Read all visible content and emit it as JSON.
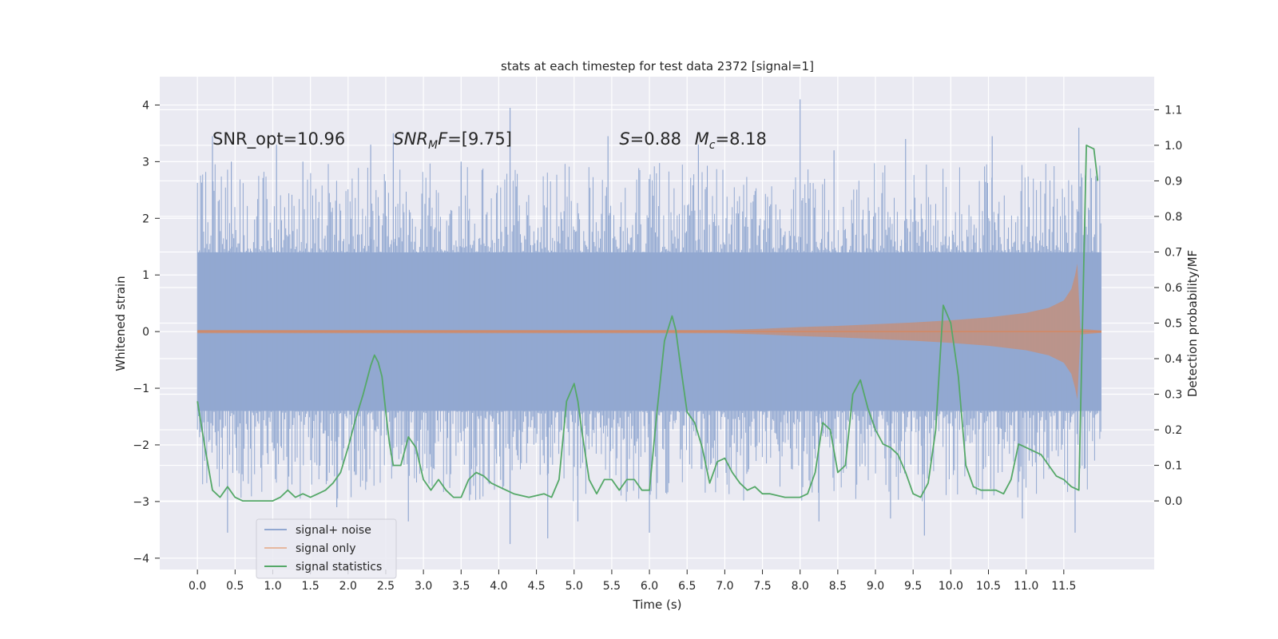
{
  "chart_data": {
    "type": "line",
    "title": "stats at each timestep for test data 2372 [signal=1]",
    "xlabel": "Time (s)",
    "ylabel_left": "Whitened strain",
    "ylabel_right": "Detection probability/MF",
    "xlim": [
      -0.5,
      12.7
    ],
    "ylim_left": [
      -4.2,
      4.5
    ],
    "ylim_right": [
      -0.193,
      1.193
    ],
    "x_ticks": [
      0.0,
      0.5,
      1.0,
      1.5,
      2.0,
      2.5,
      3.0,
      3.5,
      4.0,
      4.5,
      5.0,
      5.5,
      6.0,
      6.5,
      7.0,
      7.5,
      8.0,
      8.5,
      9.0,
      9.5,
      10.0,
      10.5,
      11.0,
      11.5
    ],
    "x_tick_labels": [
      "0.0",
      "0.5",
      "1.0",
      "1.5",
      "2.0",
      "2.5",
      "3.0",
      "3.5",
      "4.0",
      "4.5",
      "5.0",
      "5.5",
      "6.0",
      "6.5",
      "7.0",
      "7.5",
      "8.0",
      "8.5",
      "9.0",
      "9.5",
      "10.0",
      "10.5",
      "11.0",
      "11.5"
    ],
    "y_left_ticks": [
      4,
      3,
      2,
      1,
      0,
      -1,
      -2,
      -3,
      -4
    ],
    "y_left_tick_labels": [
      "4",
      "3",
      "2",
      "1",
      "0",
      "−1",
      "−2",
      "−3",
      "−4"
    ],
    "y_right_ticks": [
      1.1,
      1.0,
      0.9,
      0.8,
      0.7,
      0.6,
      0.5,
      0.4,
      0.3,
      0.2,
      0.1,
      0.0
    ],
    "y_right_tick_labels": [
      "1.1",
      "1.0",
      "0.9",
      "0.8",
      "0.7",
      "0.6",
      "0.5",
      "0.4",
      "0.3",
      "0.2",
      "0.1",
      "0.0"
    ],
    "grid": true,
    "legend_position": "bottom-left",
    "series": [
      {
        "name": "signal+ noise",
        "axis": "left",
        "color": "#92a8d1",
        "kind": "noise-band",
        "time_range": [
          0.0,
          12.0
        ],
        "core_amplitude": 1.4,
        "peak_x": [
          0.2,
          0.45,
          1.05,
          1.4,
          2.3,
          2.6,
          3.5,
          4.15,
          5.45,
          6.65,
          8.0,
          8.45,
          9.4,
          10.55,
          11.7
        ],
        "peak_y": [
          3.45,
          3.0,
          3.3,
          3.0,
          3.3,
          3.5,
          3.0,
          3.95,
          3.45,
          3.3,
          4.1,
          3.2,
          3.4,
          3.45,
          3.6
        ],
        "trough_x": [
          0.4,
          1.85,
          2.8,
          4.15,
          4.65,
          5.05,
          6.0,
          8.25,
          9.2,
          9.65,
          10.95,
          11.65
        ],
        "trough_y": [
          -3.55,
          -3.1,
          -3.35,
          -3.75,
          -3.65,
          -3.35,
          -3.55,
          -3.35,
          -3.3,
          -3.6,
          -3.3,
          -3.55
        ]
      },
      {
        "name": "signal only",
        "axis": "left",
        "color": "#dd8452",
        "kind": "chirp",
        "time_range": [
          0.0,
          12.0
        ],
        "merger_time": 11.68,
        "x": [
          0.0,
          7.0,
          7.5,
          8.0,
          8.5,
          9.0,
          9.5,
          10.0,
          10.5,
          11.0,
          11.3,
          11.5,
          11.6,
          11.65,
          11.68,
          11.72,
          12.0
        ],
        "envelope": [
          0.03,
          0.03,
          0.05,
          0.08,
          0.1,
          0.13,
          0.16,
          0.2,
          0.25,
          0.33,
          0.42,
          0.55,
          0.75,
          1.0,
          1.2,
          0.05,
          0.02
        ]
      },
      {
        "name": "signal statistics",
        "axis": "right",
        "color": "#55a868",
        "kind": "line",
        "x": [
          0.0,
          0.1,
          0.2,
          0.3,
          0.4,
          0.5,
          0.6,
          0.8,
          1.0,
          1.1,
          1.2,
          1.3,
          1.4,
          1.5,
          1.6,
          1.7,
          1.8,
          1.9,
          2.0,
          2.1,
          2.2,
          2.3,
          2.35,
          2.4,
          2.45,
          2.5,
          2.55,
          2.6,
          2.7,
          2.8,
          2.9,
          3.0,
          3.1,
          3.2,
          3.3,
          3.4,
          3.5,
          3.6,
          3.7,
          3.8,
          3.9,
          4.0,
          4.2,
          4.4,
          4.6,
          4.7,
          4.8,
          4.9,
          5.0,
          5.05,
          5.1,
          5.2,
          5.3,
          5.4,
          5.5,
          5.6,
          5.7,
          5.8,
          5.9,
          6.0,
          6.1,
          6.2,
          6.3,
          6.35,
          6.4,
          6.5,
          6.6,
          6.7,
          6.8,
          6.9,
          7.0,
          7.1,
          7.2,
          7.3,
          7.4,
          7.5,
          7.6,
          7.8,
          8.0,
          8.1,
          8.2,
          8.3,
          8.4,
          8.5,
          8.6,
          8.7,
          8.8,
          8.9,
          9.0,
          9.1,
          9.2,
          9.3,
          9.4,
          9.5,
          9.6,
          9.7,
          9.8,
          9.9,
          10.0,
          10.1,
          10.2,
          10.3,
          10.4,
          10.5,
          10.6,
          10.7,
          10.8,
          10.9,
          11.0,
          11.1,
          11.2,
          11.3,
          11.4,
          11.5,
          11.6,
          11.7,
          11.8,
          11.9,
          11.95
        ],
        "y": [
          0.28,
          0.15,
          0.03,
          0.01,
          0.04,
          0.01,
          0.0,
          0.0,
          0.0,
          0.01,
          0.03,
          0.01,
          0.02,
          0.01,
          0.02,
          0.03,
          0.05,
          0.08,
          0.15,
          0.23,
          0.3,
          0.38,
          0.41,
          0.39,
          0.35,
          0.25,
          0.16,
          0.1,
          0.1,
          0.18,
          0.15,
          0.06,
          0.03,
          0.06,
          0.03,
          0.01,
          0.01,
          0.06,
          0.08,
          0.07,
          0.05,
          0.04,
          0.02,
          0.01,
          0.02,
          0.01,
          0.06,
          0.28,
          0.33,
          0.28,
          0.2,
          0.06,
          0.02,
          0.06,
          0.06,
          0.03,
          0.06,
          0.06,
          0.03,
          0.03,
          0.25,
          0.45,
          0.52,
          0.48,
          0.4,
          0.25,
          0.22,
          0.15,
          0.05,
          0.11,
          0.12,
          0.08,
          0.05,
          0.03,
          0.04,
          0.02,
          0.02,
          0.01,
          0.01,
          0.02,
          0.08,
          0.22,
          0.2,
          0.08,
          0.1,
          0.3,
          0.34,
          0.26,
          0.2,
          0.16,
          0.15,
          0.13,
          0.08,
          0.02,
          0.01,
          0.05,
          0.2,
          0.55,
          0.5,
          0.35,
          0.1,
          0.04,
          0.03,
          0.03,
          0.03,
          0.02,
          0.06,
          0.16,
          0.15,
          0.14,
          0.13,
          0.1,
          0.07,
          0.06,
          0.04,
          0.03,
          1.0,
          0.99,
          0.9
        ]
      }
    ],
    "annotations": [
      {
        "text": "SNR_opt=10.96",
        "x": 0.2,
        "y": 3.3
      },
      {
        "text": "SNR",
        "subscript": "M",
        "suffix": "F=[9.75]",
        "italic_prefix": true,
        "x": 2.6,
        "y": 3.3
      },
      {
        "text": "S",
        "suffix": "=0.88",
        "italic_prefix": true,
        "x": 5.6,
        "y": 3.3
      },
      {
        "text": "M",
        "subscript": "c",
        "suffix": "=8.18",
        "italic_prefix": true,
        "x": 6.6,
        "y": 3.3
      }
    ]
  },
  "legend": {
    "items": [
      {
        "label": "signal+ noise",
        "color": "#92a8d1"
      },
      {
        "label": "signal only",
        "color": "#e6b89f"
      },
      {
        "label": "signal statistics",
        "color": "#55a868"
      }
    ]
  },
  "colors": {
    "plot_background": "#eaeaf2",
    "grid": "#ffffff",
    "text": "#262626"
  }
}
